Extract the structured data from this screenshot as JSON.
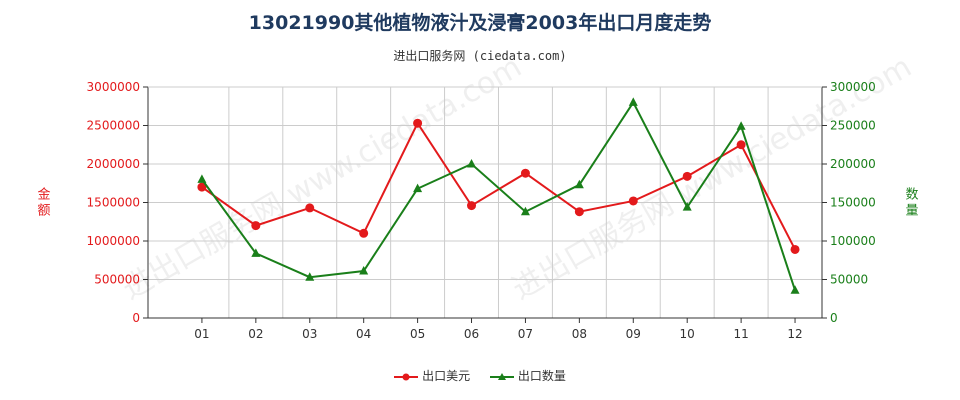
{
  "title": "13021990其他植物液汁及浸膏2003年出口月度走势",
  "subtitle": "进出口服务网 (ciedata.com)",
  "watermark": "进出口服务网 www.ciedata.com",
  "colors": {
    "usd": "#e31a1c",
    "qty": "#1a7f1a",
    "grid": "#cccccc",
    "axis": "#333333"
  },
  "chart_data": {
    "type": "line",
    "categories": [
      "01",
      "02",
      "03",
      "04",
      "05",
      "06",
      "07",
      "08",
      "09",
      "10",
      "11",
      "12"
    ],
    "y_left": {
      "label": "金额",
      "ylim": [
        0,
        3000000
      ],
      "ticks": [
        "0",
        "500000",
        "1000000",
        "1500000",
        "2000000",
        "2500000",
        "3000000"
      ]
    },
    "y_right": {
      "label": "数量",
      "ylim": [
        0,
        300000
      ],
      "ticks": [
        "0",
        "50000",
        "100000",
        "150000",
        "200000",
        "250000",
        "300000"
      ]
    },
    "series": [
      {
        "name": "出口美元",
        "axis": "left",
        "values": [
          1700000,
          1200000,
          1430000,
          1100000,
          2530000,
          1460000,
          1880000,
          1380000,
          1520000,
          1840000,
          2250000,
          890000
        ]
      },
      {
        "name": "出口数量",
        "axis": "right",
        "values": [
          180000,
          84000,
          53000,
          61000,
          168000,
          200000,
          138000,
          173000,
          280000,
          144000,
          249000,
          36000
        ]
      }
    ],
    "grid": true,
    "legend": "bottom-center"
  }
}
